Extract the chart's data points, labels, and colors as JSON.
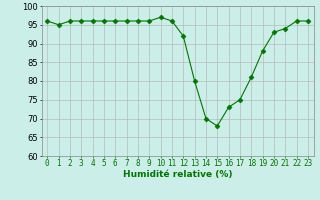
{
  "x": [
    0,
    1,
    2,
    3,
    4,
    5,
    6,
    7,
    8,
    9,
    10,
    11,
    12,
    13,
    14,
    15,
    16,
    17,
    18,
    19,
    20,
    21,
    22,
    23
  ],
  "y": [
    96,
    95,
    96,
    96,
    96,
    96,
    96,
    96,
    96,
    96,
    97,
    96,
    92,
    80,
    70,
    68,
    73,
    75,
    81,
    88,
    93,
    94,
    96,
    96
  ],
  "line_color": "#007700",
  "marker": "D",
  "marker_size": 2.5,
  "bg_color": "#cceee8",
  "grid_color": "#b0b0b0",
  "xlabel": "Humidité relative (%)",
  "xlabel_color": "#007700",
  "ylim": [
    60,
    100
  ],
  "yticks": [
    60,
    65,
    70,
    75,
    80,
    85,
    90,
    95,
    100
  ],
  "xlim": [
    -0.5,
    23.5
  ],
  "xticks": [
    0,
    1,
    2,
    3,
    4,
    5,
    6,
    7,
    8,
    9,
    10,
    11,
    12,
    13,
    14,
    15,
    16,
    17,
    18,
    19,
    20,
    21,
    22,
    23
  ],
  "tick_fontsize": 5.5,
  "ytick_fontsize": 6.0,
  "xlabel_fontsize": 6.5
}
